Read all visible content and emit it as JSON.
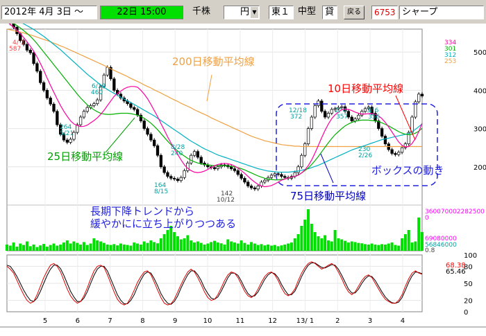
{
  "toolbar": {
    "date_from": "2012年 4月 3日 ～",
    "date_to": "22日 15:00",
    "unit": "千株",
    "currency": "円",
    "market": "東１",
    "size": "中型",
    "lending": "貸",
    "back_label": "戻る",
    "code": "6753",
    "name": "シャープ"
  },
  "colors": {
    "ma10": "#ff00a0",
    "ma25": "#00b000",
    "ma75": "#00b0c0",
    "ma200": "#f0a040",
    "volume": "#00e000",
    "annotation": "#2020e0",
    "ma200_label": "#f0a040",
    "ma10_label": "#ff0000",
    "ma25_label": "#00a000"
  },
  "annotations": {
    "ma200": "200日移動平均線",
    "ma10": "10日移動平均線",
    "ma25": "25日移動平均線",
    "ma75": "75日移動平均線",
    "box": "ボックスの動き",
    "trend_line1": "長期下降トレンドから",
    "trend_line2": "緩やかにに立ち上がりつつある"
  },
  "chart_data": {
    "type": "line",
    "title": "6753 シャープ",
    "price_axis": {
      "ticks": [
        "500",
        "400",
        "300",
        "200"
      ],
      "ylim": [
        100,
        560
      ]
    },
    "ma_end_labels": [
      {
        "text": "334",
        "color": "#ff00a0"
      },
      {
        "text": "301",
        "color": "#00b000"
      },
      {
        "text": "312",
        "color": "#00b0c0"
      },
      {
        "text": "253",
        "color": "#f0a040"
      }
    ],
    "price_labels": [
      {
        "text": "4/ 3",
        "color": "#ff4040"
      },
      {
        "text": "587",
        "color": "#ff4040"
      },
      {
        "text": "6/19",
        "color": "#00a0a0"
      },
      {
        "text": "460",
        "color": "#00a0a0"
      },
      {
        "text": "264",
        "color": "#00a0a0"
      },
      {
        "text": "5/21",
        "color": "#00a0a0"
      },
      {
        "text": "8/28",
        "color": "#00a0a0"
      },
      {
        "text": "240",
        "color": "#00a0a0"
      },
      {
        "text": "164",
        "color": "#00a0a0"
      },
      {
        "text": "8/15",
        "color": "#00a0a0"
      },
      {
        "text": "142",
        "color": "#404040"
      },
      {
        "text": "10/12",
        "color": "#404040"
      },
      {
        "text": "12/18",
        "color": "#00a0a0"
      },
      {
        "text": "372",
        "color": "#00a0a0"
      },
      {
        "text": "2/ 4",
        "color": "#00a0a0"
      },
      {
        "text": "357",
        "color": "#00a0a0"
      },
      {
        "text": "3/ 6",
        "color": "#00a0a0"
      },
      {
        "text": "356",
        "color": "#00a0a0"
      },
      {
        "text": "230",
        "color": "#00a0a0"
      },
      {
        "text": "2/26",
        "color": "#00a0a0"
      }
    ],
    "volume_labels": [
      {
        "text": "360070002282500",
        "color": "#ff00ff"
      },
      {
        "text": "0",
        "color": "#ff00ff"
      },
      {
        "text": "69080000",
        "color": "#ff00ff"
      },
      {
        "text": "56846000",
        "color": "#00a0a0"
      },
      {
        "text": "0.8",
        "color": "#404040"
      }
    ],
    "osc_axis": {
      "ticks": [
        "100",
        "80",
        "50",
        "20",
        "0"
      ],
      "ylim": [
        0,
        100
      ]
    },
    "osc_labels": [
      {
        "text": "68.38",
        "color": "#ff0000"
      },
      {
        "text": "65.46",
        "color": "#000000"
      }
    ],
    "x_ticks": [
      "5",
      "6",
      "7",
      "8",
      "9",
      "10",
      "11",
      "12",
      "13/ 1",
      "2",
      "3",
      "4"
    ],
    "price": [
      587,
      575,
      565,
      548,
      530,
      520,
      505,
      498,
      470,
      450,
      420,
      400,
      380,
      364,
      345,
      310,
      285,
      270,
      264,
      272,
      290,
      310,
      330,
      345,
      355,
      360,
      365,
      375,
      410,
      440,
      460,
      430,
      400,
      390,
      380,
      372,
      365,
      355,
      350,
      335,
      320,
      300,
      285,
      270,
      255,
      230,
      200,
      185,
      175,
      170,
      168,
      164,
      172,
      190,
      210,
      230,
      240,
      225,
      210,
      205,
      200,
      198,
      195,
      200,
      205,
      204,
      200,
      195,
      190,
      180,
      170,
      160,
      150,
      145,
      142,
      150,
      160,
      165,
      172,
      178,
      182,
      180,
      175,
      172,
      170,
      175,
      185,
      200,
      230,
      260,
      300,
      330,
      360,
      372,
      345,
      330,
      340,
      350,
      352,
      355,
      357,
      345,
      330,
      320,
      325,
      335,
      345,
      352,
      356,
      340,
      320,
      300,
      280,
      260,
      245,
      235,
      232,
      238,
      250,
      260,
      290,
      330,
      370,
      390,
      385
    ],
    "ma10": [
      580,
      572,
      565,
      557,
      548,
      538,
      527,
      515,
      502,
      487,
      470,
      452,
      432,
      413,
      395,
      377,
      360,
      345,
      332,
      320,
      312,
      308,
      305,
      306,
      309,
      315,
      321,
      328,
      337,
      348,
      360,
      372,
      384,
      392,
      398,
      404,
      408,
      410,
      410,
      408,
      400,
      390,
      378,
      363,
      347,
      331,
      313,
      296,
      278,
      262,
      247,
      232,
      218,
      205,
      196,
      190,
      186,
      185,
      186,
      189,
      193,
      198,
      203,
      206,
      208,
      209,
      208,
      206,
      202,
      197,
      190,
      183,
      175,
      167,
      160,
      154,
      150,
      148,
      149,
      151,
      155,
      160,
      165,
      168,
      171,
      173,
      175,
      178,
      184,
      192,
      203,
      218,
      236,
      256,
      276,
      295,
      312,
      326,
      336,
      343,
      349,
      351,
      350,
      347,
      343,
      340,
      338,
      338,
      339,
      339,
      337,
      333,
      326,
      316,
      304,
      291,
      278,
      265,
      256,
      252,
      253,
      261,
      274,
      292,
      314
    ],
    "ma25": [
      585,
      580,
      575,
      569,
      563,
      556,
      549,
      541,
      532,
      522,
      511,
      500,
      489,
      478,
      467,
      456,
      445,
      434,
      423,
      412,
      401,
      390,
      380,
      371,
      362,
      355,
      349,
      344,
      340,
      338,
      337,
      337,
      338,
      339,
      340,
      340,
      340,
      339,
      337,
      335,
      332,
      327,
      321,
      314,
      306,
      297,
      287,
      277,
      267,
      258,
      249,
      241,
      234,
      228,
      222,
      217,
      213,
      210,
      208,
      206,
      205,
      204,
      203,
      203,
      203,
      203,
      202,
      201,
      200,
      198,
      195,
      192,
      188,
      184,
      180,
      176,
      173,
      170,
      168,
      167,
      166,
      166,
      167,
      168,
      170,
      172,
      175,
      179,
      184,
      190,
      197,
      206,
      216,
      227,
      239,
      251,
      263,
      274,
      284,
      292,
      300,
      307,
      312,
      316,
      319,
      321,
      322,
      322,
      322,
      321,
      320,
      318,
      315,
      311,
      307,
      302,
      297,
      292,
      288,
      285,
      284,
      285,
      288,
      293,
      301
    ],
    "ma75": [
      590,
      588,
      585,
      582,
      578,
      574,
      569,
      564,
      559,
      553,
      547,
      541,
      534,
      527,
      520,
      513,
      506,
      498,
      490,
      482,
      474,
      466,
      458,
      450,
      442,
      435,
      428,
      421,
      414,
      408,
      402,
      397,
      392,
      387,
      382,
      377,
      372,
      368,
      363,
      358,
      353,
      348,
      343,
      338,
      333,
      327,
      321,
      315,
      309,
      303,
      297,
      291,
      285,
      279,
      273,
      267,
      262,
      257,
      252,
      247,
      243,
      239,
      235,
      231,
      228,
      225,
      222,
      219,
      216,
      213,
      210,
      207,
      204,
      201,
      198,
      195,
      193,
      191,
      189,
      188,
      187,
      186,
      186,
      186,
      186,
      187,
      188,
      189,
      191,
      193,
      195,
      198,
      201,
      204,
      208,
      212,
      216,
      220,
      224,
      228,
      232,
      236,
      240,
      244,
      247,
      250,
      253,
      256,
      259,
      262,
      265,
      268,
      271,
      273,
      275,
      277,
      279,
      281,
      283,
      285,
      287,
      292,
      298,
      305,
      312
    ],
    "ma200": [
      560,
      558,
      556,
      554,
      552,
      550,
      547,
      545,
      542,
      539,
      536,
      533,
      530,
      527,
      523,
      520,
      516,
      513,
      509,
      505,
      501,
      497,
      493,
      489,
      485,
      481,
      477,
      473,
      469,
      465,
      461,
      456,
      452,
      448,
      444,
      440,
      436,
      431,
      427,
      423,
      419,
      414,
      410,
      406,
      401,
      397,
      393,
      388,
      384,
      379,
      375,
      371,
      366,
      362,
      358,
      354,
      349,
      345,
      341,
      337,
      333,
      328,
      324,
      320,
      316,
      312,
      308,
      304,
      300,
      296,
      292,
      288,
      284,
      280,
      277,
      274,
      271,
      268,
      266,
      264,
      262,
      260,
      258,
      257,
      256,
      255,
      254,
      254,
      253,
      253,
      253,
      253,
      253,
      253,
      253,
      253,
      253,
      253,
      253,
      253,
      253,
      253,
      253,
      253,
      253,
      253,
      253,
      253,
      253,
      253,
      253,
      253,
      253,
      253,
      253,
      253,
      253,
      253,
      253,
      253,
      253,
      253,
      253,
      253,
      253
    ],
    "volume": [
      30,
      25,
      40,
      20,
      35,
      28,
      45,
      22,
      30,
      18,
      26,
      33,
      20,
      28,
      35,
      25,
      30,
      40,
      50,
      35,
      45,
      38,
      30,
      42,
      28,
      35,
      60,
      50,
      45,
      38,
      30,
      28,
      32,
      26,
      35,
      30,
      28,
      25,
      40,
      35,
      30,
      45,
      38,
      50,
      42,
      36,
      60,
      80,
      100,
      120,
      90,
      70,
      55,
      60,
      75,
      50,
      40,
      45,
      38,
      30,
      35,
      42,
      48,
      40,
      36,
      30,
      55,
      45,
      40,
      35,
      50,
      38,
      30,
      42,
      35,
      28,
      32,
      26,
      30,
      25,
      28,
      22,
      26,
      30,
      35,
      40,
      60,
      80,
      120,
      150,
      200,
      130,
      90,
      70,
      60,
      75,
      50,
      45,
      100,
      60,
      55,
      48,
      40,
      45,
      42,
      38,
      36,
      32,
      30,
      35,
      30,
      28,
      32,
      30,
      35,
      40,
      28,
      25,
      60,
      80,
      100,
      40,
      45,
      160,
      90
    ],
    "osc_k": [
      80,
      75,
      68,
      55,
      42,
      30,
      20,
      15,
      18,
      30,
      45,
      60,
      72,
      82,
      85,
      80,
      70,
      55,
      40,
      28,
      20,
      15,
      18,
      28,
      42,
      58,
      72,
      80,
      82,
      78,
      65,
      50,
      35,
      22,
      15,
      12,
      15,
      25,
      38,
      52,
      62,
      70,
      72,
      65,
      52,
      38,
      25,
      15,
      12,
      14,
      22,
      35,
      48,
      60,
      70,
      75,
      70,
      60,
      48,
      35,
      25,
      20,
      22,
      30,
      42,
      55,
      65,
      70,
      68,
      60,
      48,
      36,
      28,
      25,
      30,
      40,
      52,
      62,
      68,
      70,
      65,
      55,
      42,
      32,
      28,
      32,
      40,
      55,
      68,
      78,
      85,
      88,
      85,
      80,
      75,
      78,
      82,
      85,
      80,
      70,
      58,
      45,
      35,
      30,
      35,
      45,
      55,
      62,
      65,
      60,
      50,
      40,
      30,
      22,
      18,
      15,
      15,
      20,
      30,
      45,
      58,
      68,
      72,
      68,
      66
    ],
    "osc_d": [
      82,
      80,
      72,
      62,
      50,
      38,
      28,
      20,
      18,
      24,
      36,
      50,
      64,
      75,
      82,
      82,
      76,
      64,
      50,
      36,
      26,
      18,
      18,
      24,
      35,
      50,
      64,
      75,
      80,
      80,
      72,
      58,
      44,
      30,
      20,
      14,
      14,
      20,
      30,
      44,
      56,
      66,
      70,
      68,
      58,
      46,
      32,
      22,
      15,
      13,
      18,
      28,
      42,
      54,
      65,
      72,
      72,
      65,
      55,
      42,
      32,
      24,
      22,
      26,
      36,
      48,
      60,
      68,
      68,
      64,
      54,
      42,
      32,
      27,
      28,
      35,
      46,
      57,
      65,
      69,
      67,
      60,
      48,
      38,
      30,
      30,
      36,
      48,
      62,
      73,
      82,
      86,
      86,
      82,
      78,
      77,
      80,
      83,
      82,
      75,
      64,
      52,
      40,
      33,
      33,
      40,
      50,
      58,
      63,
      62,
      55,
      45,
      35,
      26,
      20,
      16,
      15,
      17,
      25,
      38,
      52,
      63,
      70,
      69,
      67
    ]
  }
}
